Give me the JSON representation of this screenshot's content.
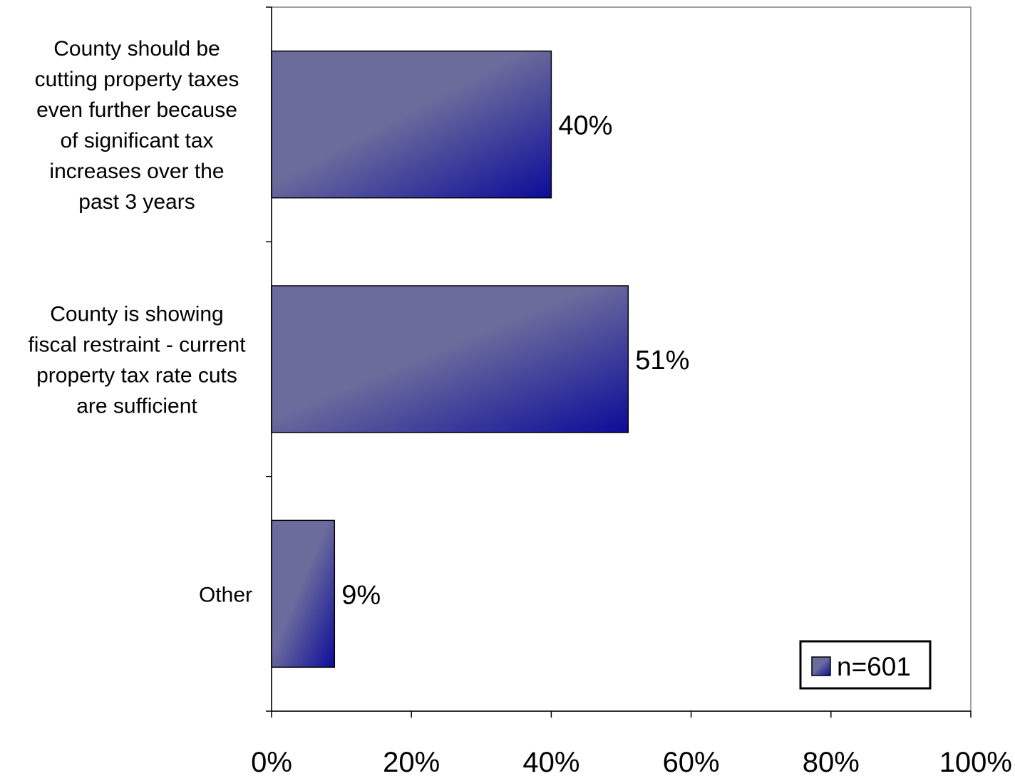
{
  "chart_data": {
    "type": "bar",
    "orientation": "horizontal",
    "categories": [
      "County should be cutting property taxes even further because of significant tax increases over the past 3 years",
      "County is showing fiscal restraint - current property tax rate cuts are sufficient",
      "Other"
    ],
    "category_lines": [
      [
        "County should be",
        "cutting property taxes",
        "even further because",
        "of significant tax",
        "increases over the",
        "past 3 years"
      ],
      [
        "County is showing",
        "fiscal restraint - current",
        "property tax rate cuts",
        "are sufficient"
      ],
      [
        "Other"
      ]
    ],
    "series": [
      {
        "name": "n=601",
        "values": [
          40,
          51,
          9
        ],
        "labels": [
          "40%",
          "51%",
          "9%"
        ]
      }
    ],
    "xlim": [
      0,
      100
    ],
    "x_ticks": [
      0,
      20,
      40,
      60,
      80,
      100
    ],
    "x_tick_labels": [
      "0%",
      "20%",
      "40%",
      "60%",
      "80%",
      "100%"
    ],
    "title": "",
    "xlabel": "",
    "ylabel": "",
    "grid": false,
    "legend": {
      "position": "bottom-right",
      "entries": [
        "n=601"
      ]
    },
    "colors": {
      "bar_light": "#6c6c9c",
      "bar_dark": "#0c0c9a",
      "bar_border": "#000000",
      "axis": "#000000",
      "plot_border": "#808080"
    }
  }
}
